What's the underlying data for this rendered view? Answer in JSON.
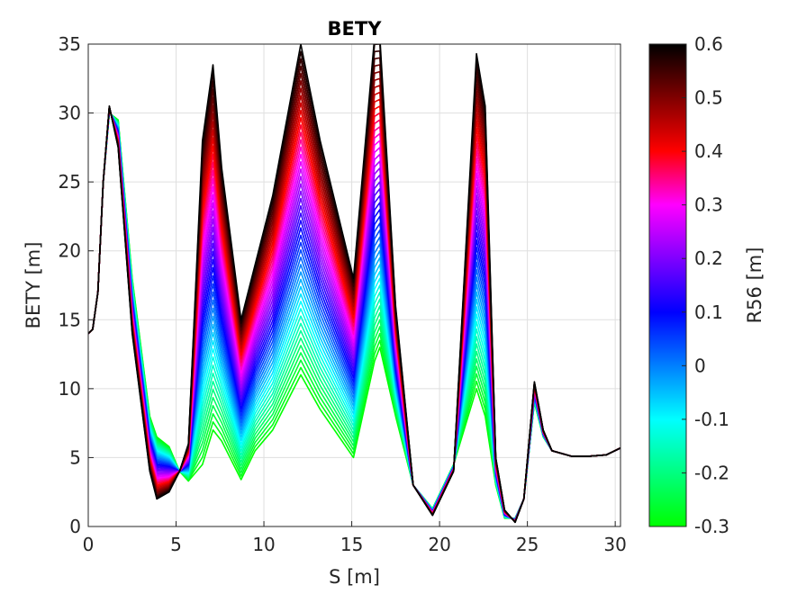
{
  "chart_data": {
    "type": "line",
    "title": "BETY",
    "xlabel": "S [m]",
    "ylabel": "BETY [m]",
    "xlim": [
      0,
      30.3
    ],
    "ylim": [
      0,
      35
    ],
    "xticks": [
      0,
      5,
      10,
      15,
      20,
      25,
      30
    ],
    "xtick_labels": [
      "0",
      "5",
      "10",
      "15",
      "20",
      "25",
      "30"
    ],
    "yticks": [
      0,
      5,
      10,
      15,
      20,
      25,
      30,
      35
    ],
    "ytick_labels": [
      "0",
      "5",
      "10",
      "15",
      "20",
      "25",
      "30",
      "35"
    ],
    "grid": true,
    "s": [
      0,
      0.25,
      0.55,
      0.85,
      1.2,
      1.7,
      2.5,
      3.5,
      3.9,
      4.6,
      5.2,
      5.7,
      6.5,
      7.1,
      7.6,
      8.7,
      9.5,
      10.5,
      12.1,
      13.2,
      15.1,
      16.3,
      16.6,
      17.5,
      18.5,
      19.6,
      20.8,
      22.1,
      22.6,
      23.2,
      23.7,
      24.3,
      24.8,
      25.4,
      25.9,
      26.4,
      27.5,
      28.5,
      29.5,
      30.3
    ],
    "series_count": 46,
    "series_r56": [
      -0.3,
      -0.28,
      -0.26,
      -0.24,
      -0.22,
      -0.2,
      -0.18,
      -0.16,
      -0.14,
      -0.12,
      -0.1,
      -0.08,
      -0.06,
      -0.04,
      -0.02,
      0.0,
      0.02,
      0.04,
      0.06,
      0.08,
      0.1,
      0.12,
      0.14,
      0.16,
      0.18,
      0.2,
      0.22,
      0.24,
      0.26,
      0.28,
      0.3,
      0.32,
      0.34,
      0.36,
      0.38,
      0.4,
      0.42,
      0.44,
      0.46,
      0.48,
      0.5,
      0.52,
      0.54,
      0.56,
      0.58,
      0.6
    ],
    "bety_profile_low": [
      14.0,
      14.3,
      17.0,
      25.0,
      30.0,
      29.5,
      18.0,
      8.0,
      6.5,
      5.8,
      4.0,
      3.3,
      4.5,
      7.0,
      6.2,
      3.4,
      5.5,
      7.0,
      11.0,
      8.5,
      5.0,
      12.0,
      13.0,
      8.0,
      3.0,
      1.3,
      4.5,
      10.0,
      8.0,
      3.0,
      0.6,
      0.6,
      2.0,
      9.0,
      6.5,
      5.5,
      5.1,
      5.1,
      5.2,
      5.7
    ],
    "bety_profile_high": [
      14.0,
      14.3,
      17.0,
      25.0,
      30.5,
      27.5,
      14.0,
      4.0,
      2.0,
      2.5,
      4.0,
      6.0,
      28.0,
      33.5,
      26.0,
      15.0,
      19.0,
      24.0,
      35.0,
      28.0,
      18.0,
      35.5,
      35.5,
      16.0,
      3.0,
      0.8,
      4.0,
      34.3,
      30.5,
      5.0,
      1.2,
      0.3,
      2.0,
      10.5,
      7.0,
      5.5,
      5.1,
      5.1,
      5.2,
      5.7
    ],
    "colorbar": {
      "label": "R56 [m]",
      "range": [
        -0.3,
        0.6
      ],
      "ticks": [
        -0.3,
        -0.2,
        -0.1,
        0,
        0.1,
        0.2,
        0.3,
        0.4,
        0.5,
        0.6
      ],
      "tick_labels": [
        "-0.3",
        "-0.2",
        "-0.1",
        "0",
        "0.1",
        "0.2",
        "0.3",
        "0.4",
        "0.5",
        "0.6"
      ],
      "colors": [
        "#00ff00",
        "#00ffff",
        "#0000ff",
        "#ff00ff",
        "#ff0000",
        "#000000"
      ]
    }
  }
}
